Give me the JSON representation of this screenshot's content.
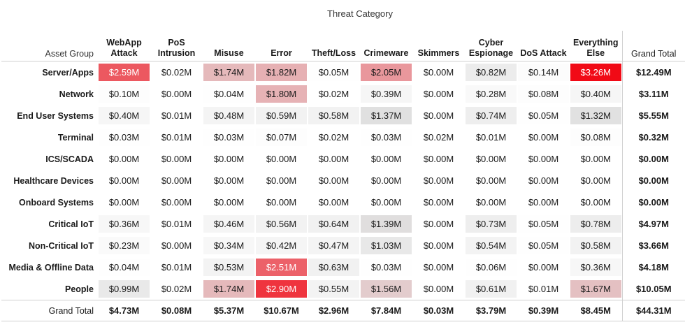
{
  "chart_data": {
    "type": "heatmap",
    "title": "",
    "column_header_title": "Threat Category",
    "row_header_title": "Asset Group",
    "columns": [
      "WebApp\nAttack",
      "PoS\nIntrusion",
      "Misuse",
      "Error",
      "Theft/Loss",
      "Crimeware",
      "Skimmers",
      "Cyber\nEspionage",
      "DoS Attack",
      "Everything\nElse"
    ],
    "rows": [
      "Server/Apps",
      "Network",
      "End User Systems",
      "Terminal",
      "ICS/SCADA",
      "Healthcare Devices",
      "Onboard Systems",
      "Critical IoT",
      "Non-Critical IoT",
      "Media & Offline Data",
      "People"
    ],
    "values": [
      [
        2.59,
        0.02,
        1.74,
        1.82,
        0.05,
        2.05,
        0.0,
        0.82,
        0.14,
        3.26
      ],
      [
        0.1,
        0.0,
        0.04,
        1.8,
        0.02,
        0.39,
        0.0,
        0.28,
        0.08,
        0.4
      ],
      [
        0.4,
        0.01,
        0.48,
        0.59,
        0.58,
        1.37,
        0.0,
        0.74,
        0.05,
        1.32
      ],
      [
        0.03,
        0.01,
        0.03,
        0.07,
        0.02,
        0.03,
        0.02,
        0.01,
        0.0,
        0.08
      ],
      [
        0.0,
        0.0,
        0.0,
        0.0,
        0.0,
        0.0,
        0.0,
        0.0,
        0.0,
        0.0
      ],
      [
        0.0,
        0.0,
        0.0,
        0.0,
        0.0,
        0.0,
        0.0,
        0.0,
        0.0,
        0.0
      ],
      [
        0.0,
        0.0,
        0.0,
        0.0,
        0.0,
        0.0,
        0.0,
        0.0,
        0.0,
        0.0
      ],
      [
        0.36,
        0.01,
        0.46,
        0.56,
        0.64,
        1.39,
        0.0,
        0.73,
        0.05,
        0.78
      ],
      [
        0.23,
        0.0,
        0.34,
        0.42,
        0.47,
        1.03,
        0.0,
        0.54,
        0.05,
        0.58
      ],
      [
        0.04,
        0.01,
        0.53,
        2.51,
        0.63,
        0.03,
        0.0,
        0.06,
        0.0,
        0.36
      ],
      [
        0.99,
        0.02,
        1.74,
        2.9,
        0.55,
        1.56,
        0.0,
        0.61,
        0.01,
        1.67
      ]
    ],
    "unit_prefix": "$",
    "unit_suffix": "M",
    "grand_total_label": "Grand Total",
    "row_totals": [
      "$12.49M",
      "$3.11M",
      "$5.55M",
      "$0.32M",
      "$0.00M",
      "$0.00M",
      "$0.00M",
      "$4.97M",
      "$3.66M",
      "$4.18M",
      "$10.05M"
    ],
    "column_totals": [
      "$4.73M",
      "$0.08M",
      "$5.37M",
      "$10.67M",
      "$2.96M",
      "$7.84M",
      "$0.03M",
      "$3.79M",
      "$0.39M",
      "$8.45M"
    ],
    "overall_total": "$44.31M",
    "colors": {
      "high": "#f10a16",
      "mid": "#e8a2a6",
      "low_gray": "#e0e0e0",
      "lowest": "#ffffff"
    }
  }
}
